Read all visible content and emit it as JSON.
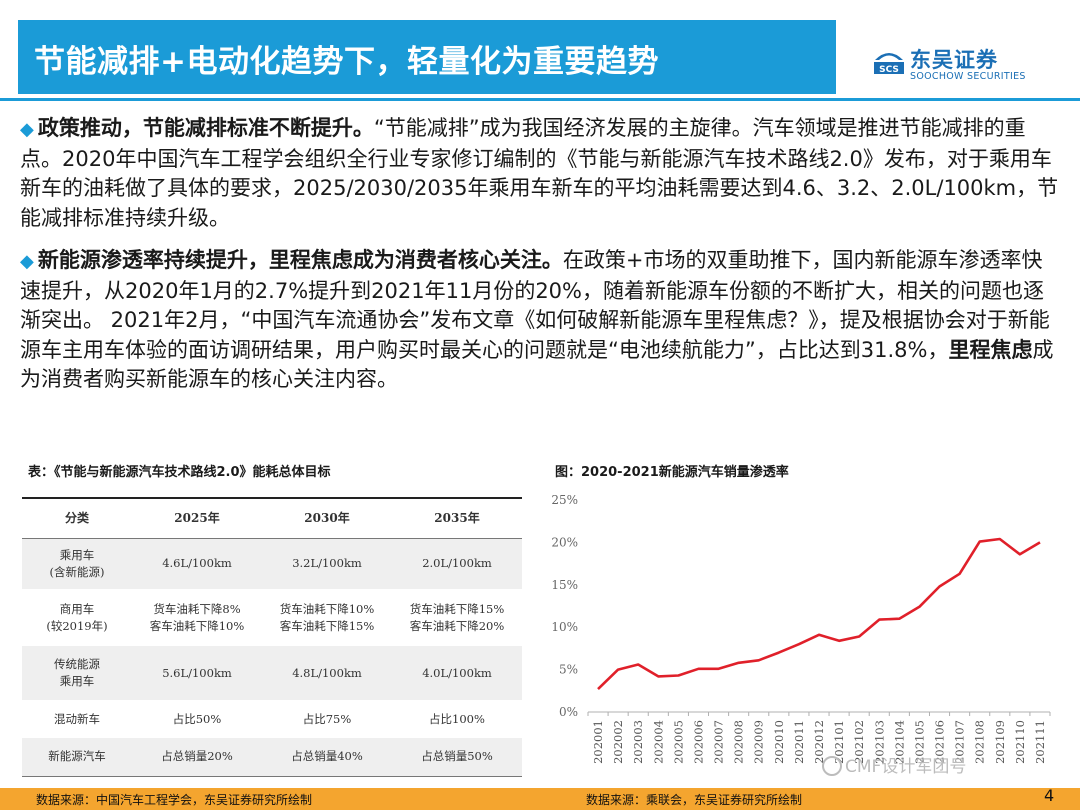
{
  "header": {
    "title": "节能减排+电动化趋势下，轻量化为重要趋势",
    "logo_cn": "东吴证券",
    "logo_en": "SOOCHOW SECURITIES",
    "logo_mark": "SCS"
  },
  "paragraphs": [
    {
      "lead": "政策推动，节能减排标准不断提升。",
      "text": "“节能减排”成为我国经济发展的主旋律。汽车领域是推进节能减排的重点。2020年中国汽车工程学会组织全行业专家修订编制的《节能与新能源汽车技术路线2.0》发布，对于乘用车新车的油耗做了具体的要求，2025/2030/2035年乘用车新车的平均油耗需要达到4.6、3.2、2.0L/100km，节能减排标准持续升级。"
    },
    {
      "lead": "新能源渗透率持续提升，里程焦虑成为消费者核心关注。",
      "text_a": "在政策+市场的双重助推下，国内新能源车渗透率快速提升，从2020年1月的2.7%提升到2021年11月份的20%，随着新能源车份额的不断扩大，相关的问题也逐渐突出。 2021年2月，“中国汽车流通协会”发布文章《如何破解新能源车里程焦虑？》，提及根据协会对于新能源车主用车体验的面访调研结果，用户购买时最关心的问题就是“电池续航能力”，占比达到31.8%，",
      "emph": "里程焦虑",
      "text_b": "成为消费者购买新能源车的核心关注内容。"
    }
  ],
  "table": {
    "caption": "表：《节能与新能源汽车技术路线2.0》能耗总体目标",
    "headers": [
      "分类",
      "2025年",
      "2030年",
      "2035年"
    ],
    "rows": [
      [
        "乘用车\n(含新能源)",
        "4.6L/100km",
        "3.2L/100km",
        "2.0L/100km"
      ],
      [
        "商用车\n(较2019年)",
        "货车油耗下降8%\n客车油耗下降10%",
        "货车油耗下降10%\n客车油耗下降15%",
        "货车油耗下降15%\n客车油耗下降20%"
      ],
      [
        "传统能源\n乘用车",
        "5.6L/100km",
        "4.8L/100km",
        "4.0L/100km"
      ],
      [
        "混动新车",
        "占比50%",
        "占比75%",
        "占比100%"
      ],
      [
        "新能源汽车",
        "占总销量20%",
        "占总销量40%",
        "占总销量50%"
      ]
    ]
  },
  "chart_data": {
    "type": "line",
    "title": "图：2020-2021新能源汽车销量渗透率",
    "x": [
      "202001",
      "202002",
      "202003",
      "202004",
      "202005",
      "202006",
      "202007",
      "202008",
      "202009",
      "202010",
      "202011",
      "202012",
      "202101",
      "202102",
      "202103",
      "202104",
      "202105",
      "202106",
      "202107",
      "202108",
      "202109",
      "202110",
      "202111"
    ],
    "series": [
      {
        "values": [
          2.7,
          5.0,
          5.6,
          4.2,
          4.3,
          5.1,
          5.1,
          5.8,
          6.1,
          7.0,
          8.0,
          9.1,
          8.4,
          8.9,
          10.9,
          11.0,
          12.4,
          14.8,
          16.3,
          20.1,
          20.4,
          18.6,
          20.0
        ]
      }
    ],
    "ylim": [
      0,
      25
    ],
    "yticks": [
      "0%",
      "5%",
      "10%",
      "15%",
      "20%",
      "25%"
    ],
    "color": "#e0202a",
    "grid": false
  },
  "footer": {
    "source_left": "数据来源：中国汽车工程学会，东吴证券研究所绘制",
    "source_right": "数据来源：乘联会，东吴证券研究所绘制",
    "page": "4",
    "watermark": "CMF设计军团号"
  }
}
